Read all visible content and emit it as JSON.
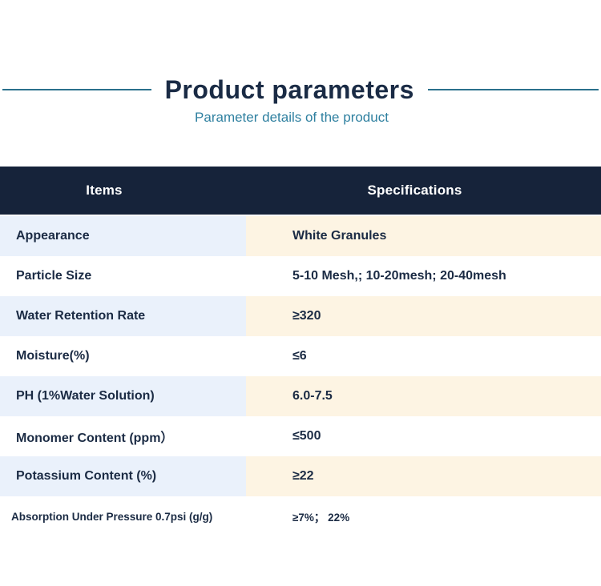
{
  "header": {
    "title": "Product parameters",
    "subtitle": "Parameter details of the product"
  },
  "table": {
    "headers": [
      "Items",
      "Specifications"
    ],
    "rows": [
      {
        "item": "Appearance",
        "spec": "White Granules"
      },
      {
        "item": "Particle Size",
        "spec": "5-10 Mesh,; 10-20mesh; 20-40mesh"
      },
      {
        "item": "Water Retention Rate",
        "spec": "≥320"
      },
      {
        "item": "Moisture(%)",
        "spec": "≤6"
      },
      {
        "item": "PH (1%Water Solution)",
        "spec": "6.0-7.5"
      },
      {
        "item": "Monomer Content (ppm）",
        "spec": "≤500"
      },
      {
        "item": "Potassium Content (%)",
        "spec": "≥22"
      },
      {
        "item": "Absorption Under Pressure 0.7psi (g/g)",
        "spec": "≥7%； 22%"
      }
    ]
  },
  "colors": {
    "header_bg": "#16233a",
    "item_tint": "#eaf1fb",
    "spec_tint": "#fdf4e3",
    "title_color": "#1a2b45",
    "subtitle_color": "#2f80a0",
    "divider_color": "#2a708c",
    "cell_text": "#1b2b44",
    "header_text": "#ffffff"
  }
}
